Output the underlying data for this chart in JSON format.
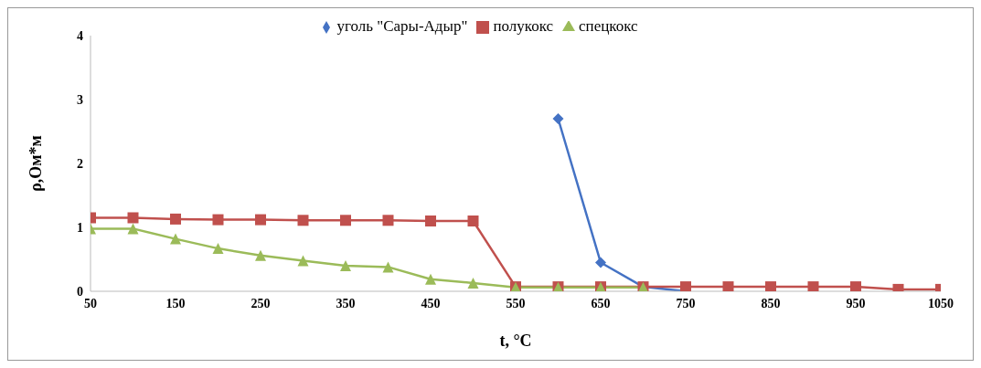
{
  "chart_data": {
    "type": "line",
    "xlabel": "t, °C",
    "ylabel": "ρ,Ом*м",
    "x": [
      50,
      100,
      150,
      200,
      250,
      300,
      350,
      400,
      450,
      500,
      550,
      600,
      650,
      700,
      750,
      800,
      850,
      900,
      950,
      1000,
      1050
    ],
    "series": [
      {
        "name": "уголь \"Сары-Адыр\"",
        "color": "#4472c4",
        "marker": "diamond",
        "values": [
          null,
          null,
          null,
          null,
          null,
          null,
          null,
          null,
          null,
          null,
          null,
          2.7,
          0.45,
          0.07,
          0.0,
          null,
          null,
          null,
          null,
          null,
          null
        ]
      },
      {
        "name": "полукокс",
        "color": "#c0504d",
        "marker": "square",
        "values": [
          1.15,
          1.15,
          1.13,
          1.12,
          1.12,
          1.11,
          1.11,
          1.11,
          1.1,
          1.1,
          0.07,
          0.07,
          0.07,
          0.07,
          0.07,
          0.07,
          0.07,
          0.07,
          0.07,
          0.03,
          0.03
        ]
      },
      {
        "name": "спецкокс",
        "color": "#9bbb59",
        "marker": "triangle",
        "values": [
          0.98,
          0.98,
          0.82,
          0.67,
          0.56,
          0.48,
          0.4,
          0.38,
          0.19,
          0.13,
          0.06,
          0.06,
          0.06,
          0.06,
          null,
          null,
          null,
          null,
          null,
          null,
          null
        ]
      }
    ],
    "xlim": [
      50,
      1050
    ],
    "xticks": [
      50,
      150,
      250,
      350,
      450,
      550,
      650,
      750,
      850,
      950,
      1050
    ],
    "ylim": [
      0,
      4
    ],
    "yticks": [
      0,
      1,
      2,
      3,
      4
    ],
    "grid": false,
    "legend": "top"
  }
}
